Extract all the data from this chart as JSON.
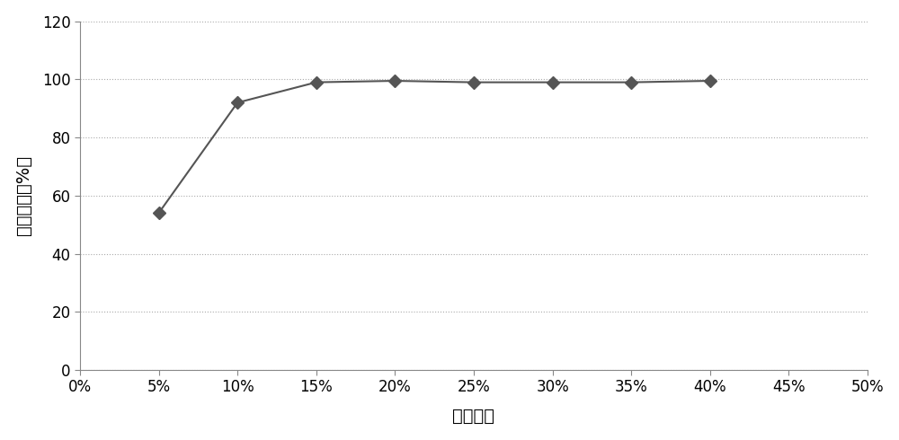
{
  "x_values": [
    0.05,
    0.1,
    0.15,
    0.2,
    0.25,
    0.3,
    0.35,
    0.4
  ],
  "y_values": [
    54,
    92,
    99,
    99.5,
    99,
    99,
    99,
    99.5
  ],
  "x_ticks": [
    0.0,
    0.05,
    0.1,
    0.15,
    0.2,
    0.25,
    0.3,
    0.35,
    0.4,
    0.45,
    0.5
  ],
  "x_tick_labels": [
    "0%",
    "5%",
    "10%",
    "15%",
    "20%",
    "25%",
    "30%",
    "35%",
    "40%",
    "45%",
    "50%"
  ],
  "y_ticks": [
    0,
    20,
    40,
    60,
    80,
    100,
    120
  ],
  "xlim": [
    0.0,
    0.5
  ],
  "ylim": [
    0,
    120
  ],
  "ylabel": "铁消解率（%）",
  "xlabel": "禗酸浓度",
  "line_color": "#555555",
  "marker_style": "D",
  "marker_color": "#555555",
  "marker_size": 7,
  "linewidth": 1.5,
  "grid_color": "#aaaaaa",
  "grid_linestyle": ":",
  "background_color": "#ffffff",
  "ylabel_fontsize": 14,
  "xlabel_fontsize": 14,
  "tick_fontsize": 12
}
